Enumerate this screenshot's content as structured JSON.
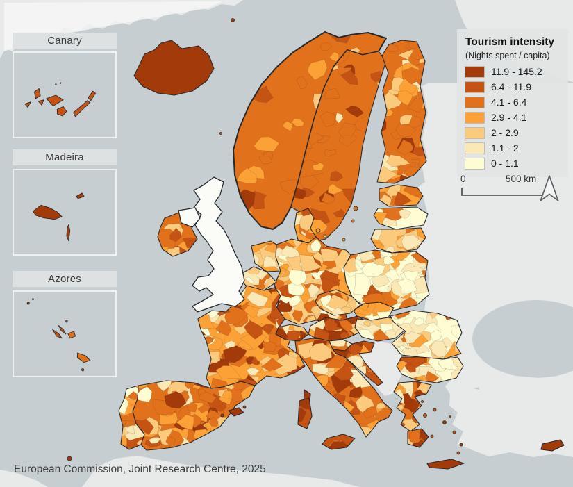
{
  "legend": {
    "title": "Tourism intensity",
    "subtitle": "(Nights spent / capita)",
    "classes": [
      {
        "label": "11.9 - 145.2",
        "color": "#a33a0a"
      },
      {
        "label": "6.4 - 11.9",
        "color": "#c55313"
      },
      {
        "label": "4.1 - 6.4",
        "color": "#e2711c"
      },
      {
        "label": "2.9 - 4.1",
        "color": "#fca135"
      },
      {
        "label": "2 - 2.9",
        "color": "#fbca7d"
      },
      {
        "label": "1.1 - 2",
        "color": "#fae9b7"
      },
      {
        "label": "0 - 1.1",
        "color": "#fdfcd2"
      }
    ]
  },
  "scalebar": {
    "start": "0",
    "end": "500 km"
  },
  "insets": [
    {
      "id": "canary",
      "label": "Canary"
    },
    {
      "id": "madeira",
      "label": "Madeira"
    },
    {
      "id": "azores",
      "label": "Azores"
    }
  ],
  "attribution": "European Commission, Joint Research Centre, 2025",
  "map": {
    "sea_color": "#c7ced2",
    "non_eu_color": "#e8eae9",
    "no_data_color": "#fbfbf8",
    "border_color": "#26292c",
    "ice_color": "#f4f6f5",
    "countries": [
      {
        "id": "iceland",
        "base": 0,
        "n": 0,
        "mix": [
          1,
          0,
          0,
          0,
          0,
          0,
          0
        ]
      },
      {
        "id": "norway",
        "base": 2,
        "n": 44,
        "mix": [
          0.1,
          0.25,
          0.4,
          0.18,
          0.07,
          0,
          0
        ]
      },
      {
        "id": "sweden",
        "base": 2,
        "n": 46,
        "mix": [
          0.15,
          0.2,
          0.3,
          0.2,
          0.1,
          0.05,
          0
        ]
      },
      {
        "id": "finland",
        "base": 2,
        "n": 46,
        "mix": [
          0.1,
          0.2,
          0.25,
          0.2,
          0.15,
          0.07,
          0.03
        ]
      },
      {
        "id": "denmark",
        "base": 3,
        "n": 12,
        "mix": [
          0,
          0.1,
          0.25,
          0.3,
          0.2,
          0.15,
          0
        ]
      },
      {
        "id": "estonia",
        "base": 3,
        "n": 8,
        "mix": [
          0,
          0.05,
          0.25,
          0.35,
          0.15,
          0.15,
          0.05
        ]
      },
      {
        "id": "latvia",
        "base": 6,
        "n": 8,
        "mix": [
          0,
          0,
          0.1,
          0.2,
          0.2,
          0.25,
          0.25
        ]
      },
      {
        "id": "lithuania",
        "base": 4,
        "n": 10,
        "mix": [
          0,
          0.05,
          0.15,
          0.3,
          0.2,
          0.2,
          0.1
        ]
      },
      {
        "id": "poland",
        "base": 6,
        "n": 58,
        "mix": [
          0,
          0.03,
          0.1,
          0.15,
          0.17,
          0.25,
          0.3
        ]
      },
      {
        "id": "germany",
        "base": 4,
        "n": 88,
        "mix": [
          0.05,
          0.08,
          0.15,
          0.2,
          0.2,
          0.17,
          0.15
        ]
      },
      {
        "id": "netherlands",
        "base": 3,
        "n": 16,
        "mix": [
          0.03,
          0.1,
          0.2,
          0.3,
          0.2,
          0.12,
          0.05
        ]
      },
      {
        "id": "belgium",
        "base": 4,
        "n": 12,
        "mix": [
          0,
          0.05,
          0.15,
          0.2,
          0.25,
          0.25,
          0.1
        ]
      },
      {
        "id": "luxembourg",
        "base": 2,
        "n": 2,
        "mix": [
          0,
          0.3,
          0.4,
          0.3,
          0,
          0,
          0
        ]
      },
      {
        "id": "france",
        "base": 3,
        "n": 98,
        "mix": [
          0.07,
          0.12,
          0.2,
          0.25,
          0.18,
          0.12,
          0.06
        ]
      },
      {
        "id": "ireland",
        "base": 2,
        "n": 12,
        "mix": [
          0,
          0.15,
          0.35,
          0.3,
          0.15,
          0.05,
          0
        ]
      },
      {
        "id": "spain",
        "base": 2,
        "n": 88,
        "mix": [
          0.1,
          0.15,
          0.25,
          0.25,
          0.15,
          0.07,
          0.03
        ]
      },
      {
        "id": "portugal",
        "base": 2,
        "n": 25,
        "mix": [
          0.05,
          0.15,
          0.3,
          0.25,
          0.15,
          0.07,
          0.03
        ]
      },
      {
        "id": "italy",
        "base": 2,
        "n": 78,
        "mix": [
          0.12,
          0.18,
          0.25,
          0.2,
          0.15,
          0.07,
          0.03
        ]
      },
      {
        "id": "switzerland",
        "base": 1,
        "n": 14,
        "mix": [
          0.25,
          0.25,
          0.2,
          0.15,
          0.1,
          0.05,
          0
        ]
      },
      {
        "id": "austria",
        "base": 0,
        "n": 22,
        "mix": [
          0.35,
          0.25,
          0.2,
          0.1,
          0.07,
          0.03,
          0
        ]
      },
      {
        "id": "czechia",
        "base": 4,
        "n": 18,
        "mix": [
          0.03,
          0.07,
          0.15,
          0.2,
          0.25,
          0.2,
          0.1
        ]
      },
      {
        "id": "slovakia",
        "base": 3,
        "n": 14,
        "mix": [
          0.03,
          0.07,
          0.15,
          0.25,
          0.25,
          0.15,
          0.1
        ]
      },
      {
        "id": "hungary",
        "base": 5,
        "n": 20,
        "mix": [
          0.02,
          0.05,
          0.1,
          0.15,
          0.2,
          0.28,
          0.2
        ]
      },
      {
        "id": "slovenia",
        "base": 2,
        "n": 8,
        "mix": [
          0.05,
          0.15,
          0.3,
          0.25,
          0.15,
          0.1,
          0
        ]
      },
      {
        "id": "croatia",
        "base": 1,
        "n": 18,
        "mix": [
          0.2,
          0.2,
          0.2,
          0.15,
          0.1,
          0.1,
          0.05
        ]
      },
      {
        "id": "romania",
        "base": 6,
        "n": 44,
        "mix": [
          0.02,
          0.05,
          0.08,
          0.12,
          0.18,
          0.25,
          0.3
        ]
      },
      {
        "id": "bulgaria",
        "base": 5,
        "n": 26,
        "mix": [
          0.05,
          0.08,
          0.12,
          0.15,
          0.2,
          0.2,
          0.2
        ]
      },
      {
        "id": "greece",
        "base": 2,
        "n": 36,
        "mix": [
          0.15,
          0.2,
          0.2,
          0.15,
          0.12,
          0.1,
          0.08
        ]
      },
      {
        "id": "peloponnese",
        "base": 2,
        "n": 6,
        "mix": [
          0.25,
          0.25,
          0.25,
          0.15,
          0.1,
          0,
          0
        ]
      },
      {
        "id": "crete",
        "base": 0,
        "n": 0,
        "mix": [
          1,
          0,
          0,
          0,
          0,
          0,
          0
        ]
      },
      {
        "id": "cyprus",
        "base": 0,
        "n": 0,
        "mix": [
          1,
          0,
          0,
          0,
          0,
          0,
          0
        ]
      },
      {
        "id": "corsica",
        "base": 0,
        "n": 0,
        "mix": [
          1,
          0,
          0,
          0,
          0,
          0,
          0
        ]
      },
      {
        "id": "sardinia",
        "base": 1,
        "n": 3,
        "mix": [
          0.4,
          0.4,
          0.2,
          0,
          0,
          0,
          0
        ]
      },
      {
        "id": "sicily",
        "base": 1,
        "n": 4,
        "mix": [
          0.3,
          0.4,
          0.3,
          0,
          0,
          0,
          0
        ]
      },
      {
        "id": "balearics",
        "base": 0,
        "n": 0,
        "mix": [
          1,
          0,
          0,
          0,
          0,
          0,
          0
        ]
      }
    ],
    "no_data_regions": [
      {
        "id": "uk"
      },
      {
        "id": "northern-ireland"
      }
    ]
  }
}
